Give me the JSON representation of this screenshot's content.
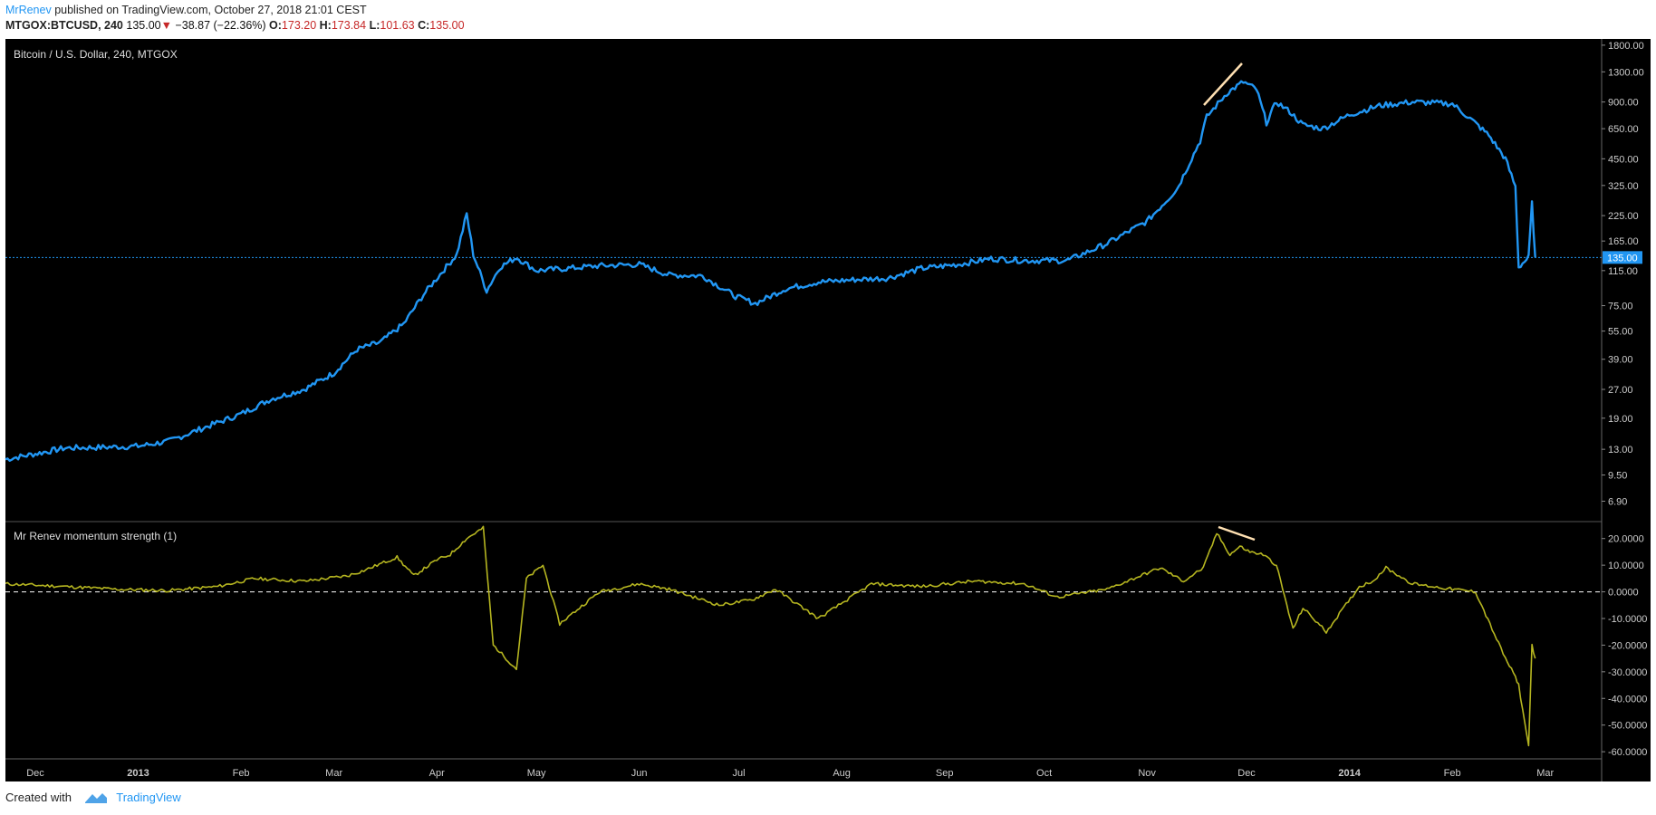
{
  "header": {
    "author": "MrRenev",
    "published_text": "published on TradingView.com, October 27, 2018 21:01 CEST",
    "symbol": "MTGOX:BTCUSD, 240",
    "last": "135.00",
    "change_arrow": "▼",
    "change": "−38.87 (−22.36%)",
    "open_label": "O:",
    "open": "173.20",
    "high_label": "H:",
    "high": "173.84",
    "low_label": "L:",
    "low": "101.63",
    "close_label": "C:",
    "close": "135.00"
  },
  "footer": {
    "created_with": "Created with",
    "brand": "TradingView"
  },
  "colors": {
    "background": "#000000",
    "price_line": "#2196f3",
    "oscillator_line": "#b5b520",
    "annotation_line": "#ffe0b2",
    "axis_text": "#cccccc",
    "last_price_badge": "#2196f3"
  },
  "chart_data": [
    {
      "type": "line",
      "title": "Bitcoin / U.S. Dollar, 240, MTGOX",
      "scale": "log",
      "ylim": [
        5.5,
        1900
      ],
      "y_ticks": [
        "1800.00",
        "1300.00",
        "900.00",
        "650.00",
        "450.00",
        "325.00",
        "225.00",
        "165.00",
        "115.00",
        "75.00",
        "55.00",
        "39.00",
        "27.00",
        "19.00",
        "13.00",
        "9.50",
        "6.90"
      ],
      "last_price_label": "135.00",
      "last_price": 135,
      "x_range": [
        "2012-11-22",
        "2014-03-18"
      ],
      "x_ticks": [
        {
          "label": "Dec",
          "date": "2012-12-01"
        },
        {
          "label": "2013",
          "date": "2013-01-01"
        },
        {
          "label": "Feb",
          "date": "2013-02-01"
        },
        {
          "label": "Mar",
          "date": "2013-03-01"
        },
        {
          "label": "Apr",
          "date": "2013-04-01"
        },
        {
          "label": "May",
          "date": "2013-05-01"
        },
        {
          "label": "Jun",
          "date": "2013-06-01"
        },
        {
          "label": "Jul",
          "date": "2013-07-01"
        },
        {
          "label": "Aug",
          "date": "2013-08-01"
        },
        {
          "label": "Sep",
          "date": "2013-09-01"
        },
        {
          "label": "Oct",
          "date": "2013-10-01"
        },
        {
          "label": "Nov",
          "date": "2013-11-01"
        },
        {
          "label": "Dec",
          "date": "2013-12-01"
        },
        {
          "label": "2014",
          "date": "2014-01-01"
        },
        {
          "label": "Feb",
          "date": "2014-02-01"
        },
        {
          "label": "Mar",
          "date": "2014-03-01"
        }
      ],
      "series": [
        {
          "x": [
            "2012-11-22",
            "2012-12-01",
            "2012-12-10",
            "2012-12-20",
            "2013-01-01",
            "2013-01-10",
            "2013-01-20",
            "2013-02-01",
            "2013-02-10",
            "2013-02-20",
            "2013-03-01",
            "2013-03-08",
            "2013-03-15",
            "2013-03-22",
            "2013-03-28",
            "2013-04-02",
            "2013-04-07",
            "2013-04-10",
            "2013-04-12",
            "2013-04-16",
            "2013-04-20",
            "2013-04-25",
            "2013-05-01",
            "2013-05-10",
            "2013-05-20",
            "2013-06-01",
            "2013-06-10",
            "2013-06-20",
            "2013-06-30",
            "2013-07-06",
            "2013-07-15",
            "2013-07-25",
            "2013-08-05",
            "2013-08-15",
            "2013-08-25",
            "2013-09-05",
            "2013-09-15",
            "2013-09-25",
            "2013-10-02",
            "2013-10-08",
            "2013-10-20",
            "2013-11-01",
            "2013-11-10",
            "2013-11-17",
            "2013-11-19",
            "2013-11-25",
            "2013-11-30",
            "2013-12-04",
            "2013-12-07",
            "2013-12-10",
            "2013-12-14",
            "2013-12-18",
            "2013-12-24",
            "2014-01-01",
            "2014-01-10",
            "2014-01-20",
            "2014-02-01",
            "2014-02-07",
            "2014-02-12",
            "2014-02-17",
            "2014-02-20",
            "2014-02-21",
            "2014-02-24",
            "2014-02-25",
            "2014-02-26"
          ],
          "values": [
            11.5,
            12.3,
            13.2,
            13.3,
            13.5,
            14.3,
            16.7,
            20,
            24,
            27,
            33,
            44,
            48,
            60,
            86,
            110,
            140,
            230,
            140,
            90,
            120,
            135,
            115,
            118,
            122,
            124,
            109,
            108,
            84,
            77,
            92,
            100,
            103,
            105,
            118,
            124,
            133,
            130,
            130,
            130,
            160,
            210,
            310,
            560,
            750,
            1000,
            1150,
            1050,
            700,
            900,
            800,
            680,
            650,
            770,
            860,
            900,
            880,
            720,
            600,
            450,
            320,
            120,
            135,
            260,
            135
          ]
        }
      ]
    },
    {
      "type": "line",
      "title": "Mr Renev momentum strength (1)",
      "ylim": [
        -62,
        25
      ],
      "y_ticks": [
        "20.0000",
        "10.0000",
        "0.0000",
        "-10.0000",
        "-20.0000",
        "-30.0000",
        "-40.0000",
        "-50.0000",
        "-60.0000"
      ],
      "zero_line": 0,
      "series": [
        {
          "x": [
            "2012-11-22",
            "2012-12-10",
            "2012-12-25",
            "2013-01-10",
            "2013-01-25",
            "2013-02-05",
            "2013-02-20",
            "2013-03-05",
            "2013-03-10",
            "2013-03-20",
            "2013-03-25",
            "2013-04-01",
            "2013-04-05",
            "2013-04-10",
            "2013-04-15",
            "2013-04-18",
            "2013-04-25",
            "2013-04-28",
            "2013-05-03",
            "2013-05-08",
            "2013-05-20",
            "2013-06-01",
            "2013-06-10",
            "2013-06-25",
            "2013-07-05",
            "2013-07-12",
            "2013-07-25",
            "2013-08-10",
            "2013-08-25",
            "2013-09-10",
            "2013-09-25",
            "2013-10-05",
            "2013-10-20",
            "2013-11-05",
            "2013-11-12",
            "2013-11-18",
            "2013-11-22",
            "2013-11-26",
            "2013-11-29",
            "2013-12-02",
            "2013-12-06",
            "2013-12-10",
            "2013-12-15",
            "2013-12-18",
            "2013-12-25",
            "2014-01-04",
            "2014-01-08",
            "2014-01-12",
            "2014-01-20",
            "2014-02-01",
            "2014-02-08",
            "2014-02-13",
            "2014-02-17",
            "2014-02-20",
            "2014-02-21",
            "2014-02-24",
            "2014-02-25",
            "2014-02-26"
          ],
          "values": [
            3,
            2,
            1,
            0.5,
            2,
            5,
            4,
            6,
            8,
            13,
            6,
            12,
            14,
            20,
            24,
            -20,
            -29,
            5,
            10,
            -12,
            0,
            3,
            1,
            -5,
            -3,
            1,
            -10,
            3,
            2,
            4,
            3,
            -2,
            1,
            9,
            4,
            9,
            22,
            14,
            17,
            15,
            14,
            10,
            -14,
            -6,
            -15,
            2,
            4,
            9,
            3,
            1,
            0,
            -14,
            -25,
            -32,
            -35,
            -58,
            -20,
            -25
          ]
        }
      ]
    }
  ]
}
